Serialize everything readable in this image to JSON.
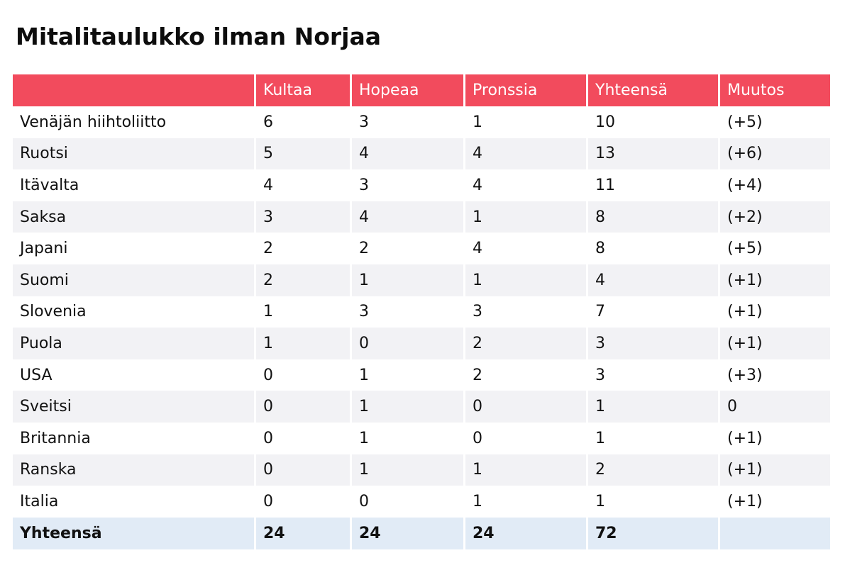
{
  "title": "Mitalitaulukko ilman Norjaa",
  "table": {
    "headers": [
      "",
      "Kultaa",
      "Hopeaa",
      "Pronssia",
      "Yhteensä",
      "Muutos"
    ],
    "rows": [
      [
        "Venäjän hiihtoliitto",
        "6",
        "3",
        "1",
        "10",
        "(+5)"
      ],
      [
        "Ruotsi",
        "5",
        "4",
        "4",
        "13",
        "(+6)"
      ],
      [
        "Itävalta",
        "4",
        "3",
        "4",
        "11",
        "(+4)"
      ],
      [
        "Saksa",
        "3",
        "4",
        "1",
        "8",
        "(+2)"
      ],
      [
        "Japani",
        "2",
        "2",
        "4",
        "8",
        "(+5)"
      ],
      [
        "Suomi",
        "2",
        "1",
        "1",
        "4",
        "(+1)"
      ],
      [
        "Slovenia",
        "1",
        "3",
        "3",
        "7",
        "(+1)"
      ],
      [
        "Puola",
        "1",
        "0",
        "2",
        "3",
        "(+1)"
      ],
      [
        "USA",
        "0",
        "1",
        "2",
        "3",
        "(+3)"
      ],
      [
        "Sveitsi",
        "0",
        "1",
        "0",
        "1",
        "0"
      ],
      [
        "Britannia",
        "0",
        "1",
        "0",
        "1",
        "(+1)"
      ],
      [
        "Ranska",
        "0",
        "1",
        "1",
        "2",
        "(+1)"
      ],
      [
        "Italia",
        "0",
        "0",
        "1",
        "1",
        "(+1)"
      ]
    ],
    "footer": [
      "Yhteensä",
      "24",
      "24",
      "24",
      "72",
      ""
    ]
  },
  "colors": {
    "header_background": "#f24b5d",
    "header_text": "#ffffff",
    "striped_row": "#f2f2f5",
    "footer_background": "#e1ebf6"
  }
}
